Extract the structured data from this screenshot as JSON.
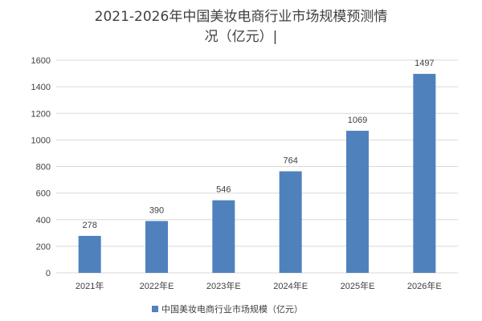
{
  "chart_data": {
    "type": "bar",
    "title_lines": [
      "2021-2026年中国美妆电商行业市场规模预测情",
      "况（亿元）|"
    ],
    "categories": [
      "2021年",
      "2022年E",
      "2023年E",
      "2024年E",
      "2025年E",
      "2026年E"
    ],
    "series": [
      {
        "name": "中国美妆电商行业市场规模（亿元）",
        "values": [
          278,
          390,
          546,
          764,
          1069,
          1497
        ]
      }
    ],
    "ylim": [
      0,
      1600
    ],
    "yticks": [
      0,
      200,
      400,
      600,
      800,
      1000,
      1200,
      1400,
      1600
    ],
    "grid": true,
    "legend_position": "bottom",
    "colors": {
      "bar": "#4f81bd",
      "grid": "#d9d9d9",
      "text": "#404040"
    }
  }
}
